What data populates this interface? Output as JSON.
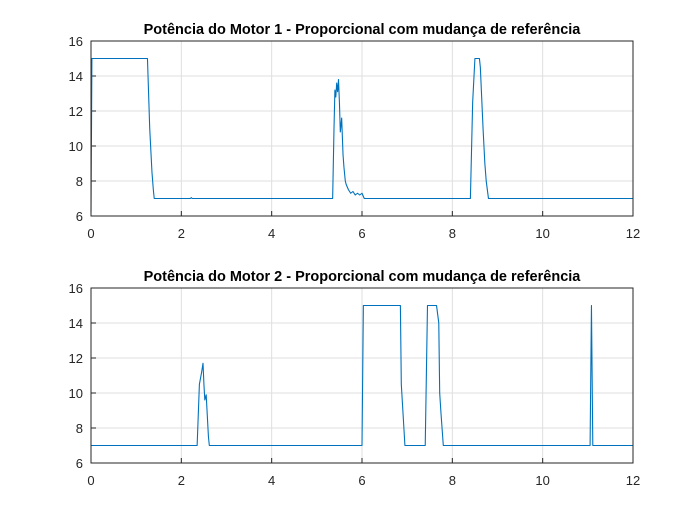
{
  "figure": {
    "background": "#ffffff",
    "line_color": "#0072BD"
  },
  "chart_data": [
    {
      "type": "line",
      "title": "Potência do Motor 1 - Proporcional com mudança de referência",
      "xlabel": "",
      "ylabel": "",
      "xlim": [
        0,
        12
      ],
      "ylim": [
        6,
        16
      ],
      "xticks": [
        0,
        2,
        4,
        6,
        8,
        10,
        12
      ],
      "yticks": [
        6,
        8,
        10,
        12,
        14,
        16
      ],
      "grid": true,
      "series": [
        {
          "x": [
            0,
            0.02,
            0.03,
            1.25,
            1.3,
            1.35,
            1.38,
            1.4,
            1.45,
            2.2,
            2.22,
            2.24,
            5.35,
            5.38,
            5.4,
            5.42,
            5.44,
            5.46,
            5.48,
            5.5,
            5.52,
            5.55,
            5.58,
            5.6,
            5.63,
            5.65,
            5.7,
            5.75,
            5.8,
            5.85,
            5.9,
            5.95,
            6.0,
            6.05,
            8.4,
            8.45,
            8.5,
            8.6,
            8.62,
            8.68,
            8.72,
            8.75,
            8.8,
            12
          ],
          "y": [
            6.2,
            15,
            15,
            15,
            11,
            8.5,
            7.5,
            7,
            7,
            7,
            7.05,
            7,
            7,
            11,
            13.2,
            12.8,
            13.6,
            13.1,
            13.8,
            12.5,
            10.8,
            11.6,
            9.5,
            8.8,
            8.0,
            7.8,
            7.5,
            7.3,
            7.4,
            7.2,
            7.3,
            7.2,
            7.3,
            7,
            7,
            12.5,
            15,
            15,
            14.5,
            11,
            9,
            8,
            7,
            7
          ]
        }
      ]
    },
    {
      "type": "line",
      "title": "Potência do Motor 2 - Proporcional com mudança de referência",
      "xlabel": "",
      "ylabel": "",
      "xlim": [
        0,
        12
      ],
      "ylim": [
        6,
        16
      ],
      "xticks": [
        0,
        2,
        4,
        6,
        8,
        10,
        12
      ],
      "yticks": [
        6,
        8,
        10,
        12,
        14,
        16
      ],
      "grid": true,
      "series": [
        {
          "x": [
            0,
            2.35,
            2.4,
            2.45,
            2.48,
            2.5,
            2.52,
            2.55,
            2.6,
            2.62,
            6.0,
            6.03,
            6.05,
            6.85,
            6.87,
            6.9,
            6.95,
            7.4,
            7.45,
            7.5,
            7.65,
            7.7,
            7.72,
            7.75,
            7.8,
            11.05,
            11.08,
            11.11,
            12
          ],
          "y": [
            7,
            7,
            10.5,
            11.2,
            11.7,
            10.5,
            9.6,
            9.9,
            7.5,
            7,
            7,
            15,
            15,
            15,
            10.5,
            9.2,
            7,
            7,
            15,
            15,
            15,
            14,
            10,
            8.8,
            7,
            7,
            15,
            7,
            7
          ]
        }
      ]
    }
  ]
}
